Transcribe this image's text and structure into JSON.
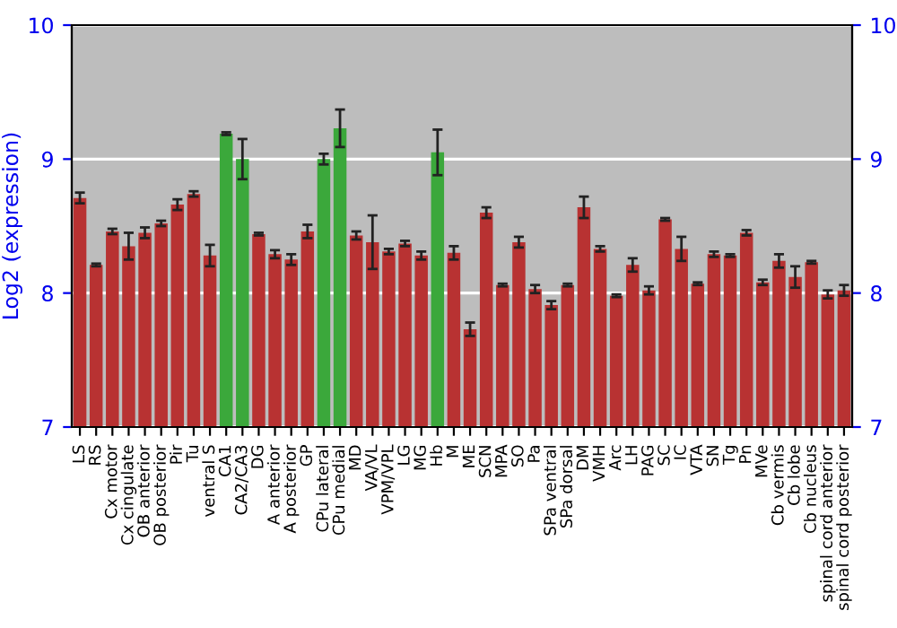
{
  "chart_data": {
    "type": "bar",
    "ylabel": "Log2 (expression)",
    "categories": [
      "LS",
      "RS",
      "Cx motor",
      "Cx cingulate",
      "OB anterior",
      "OB posterior",
      "Pir",
      "Tu",
      "ventral S",
      "CA1",
      "CA2/CA3",
      "DG",
      "A anterior",
      "A posterior",
      "GP",
      "CPu lateral",
      "CPu medial",
      "MD",
      "VA/VL",
      "VPM/VPL",
      "LG",
      "MG",
      "Hb",
      "M",
      "ME",
      "SCN",
      "MPA",
      "SO",
      "Pa",
      "SPa ventral",
      "SPa dorsal",
      "DM",
      "VMH",
      "Arc",
      "LH",
      "PAG",
      "SC",
      "IC",
      "VTA",
      "SN",
      "Tg",
      "Pn",
      "MVe",
      "Cb vermis",
      "Cb lobe",
      "Cb nucleus",
      "spinal cord anterior",
      "spinal cord posterior"
    ],
    "values": [
      8.71,
      8.21,
      8.46,
      8.35,
      8.45,
      8.52,
      8.66,
      8.74,
      8.28,
      9.19,
      9.0,
      8.44,
      8.29,
      8.25,
      8.46,
      9.0,
      9.23,
      8.43,
      8.38,
      8.31,
      8.37,
      8.28,
      9.05,
      8.3,
      7.73,
      8.6,
      8.06,
      8.38,
      8.03,
      7.91,
      8.06,
      8.64,
      8.33,
      7.98,
      8.21,
      8.02,
      8.55,
      8.33,
      8.07,
      8.29,
      8.28,
      8.45,
      8.08,
      8.24,
      8.12,
      8.23,
      7.99,
      8.02
    ],
    "errors": [
      0.04,
      0.01,
      0.02,
      0.1,
      0.04,
      0.02,
      0.04,
      0.02,
      0.08,
      0.01,
      0.15,
      0.01,
      0.03,
      0.04,
      0.05,
      0.04,
      0.14,
      0.03,
      0.2,
      0.02,
      0.02,
      0.03,
      0.17,
      0.05,
      0.05,
      0.04,
      0.01,
      0.04,
      0.03,
      0.03,
      0.01,
      0.08,
      0.02,
      0.01,
      0.05,
      0.03,
      0.01,
      0.09,
      0.01,
      0.02,
      0.01,
      0.02,
      0.02,
      0.05,
      0.08,
      0.01,
      0.03,
      0.04
    ],
    "colors": [
      "#b83232",
      "#b83232",
      "#b83232",
      "#b83232",
      "#b83232",
      "#b83232",
      "#b83232",
      "#b83232",
      "#b83232",
      "#3ba83b",
      "#3ba83b",
      "#b83232",
      "#b83232",
      "#b83232",
      "#b83232",
      "#3ba83b",
      "#3ba83b",
      "#b83232",
      "#b83232",
      "#b83232",
      "#b83232",
      "#b83232",
      "#3ba83b",
      "#b83232",
      "#b83232",
      "#b83232",
      "#b83232",
      "#b83232",
      "#b83232",
      "#b83232",
      "#b83232",
      "#b83232",
      "#b83232",
      "#b83232",
      "#b83232",
      "#b83232",
      "#b83232",
      "#b83232",
      "#b83232",
      "#b83232",
      "#b83232",
      "#b83232",
      "#b83232",
      "#b83232",
      "#b83232",
      "#b83232",
      "#b83232",
      "#b83232"
    ],
    "ylim": [
      7,
      10
    ],
    "yticks": [
      7,
      8,
      9,
      10
    ],
    "y2lim": [
      7,
      10
    ],
    "y2ticks": [
      7,
      8,
      9,
      10
    ],
    "grid": "y"
  }
}
